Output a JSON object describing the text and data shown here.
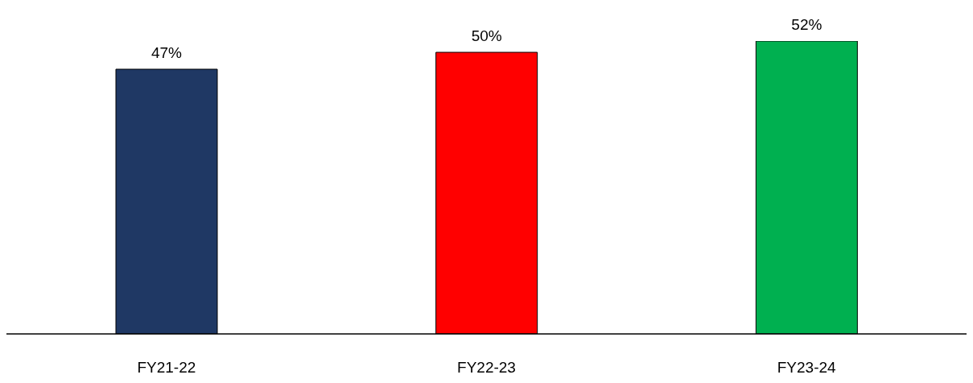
{
  "chart_data": {
    "type": "bar",
    "categories": [
      "FY21-22",
      "FY22-23",
      "FY23-24"
    ],
    "values": [
      47,
      50,
      52
    ],
    "colors": [
      "#1f3864",
      "#ff0000",
      "#00b050"
    ],
    "value_labels": [
      "47%",
      "50%",
      "52%"
    ],
    "grid": false
  }
}
